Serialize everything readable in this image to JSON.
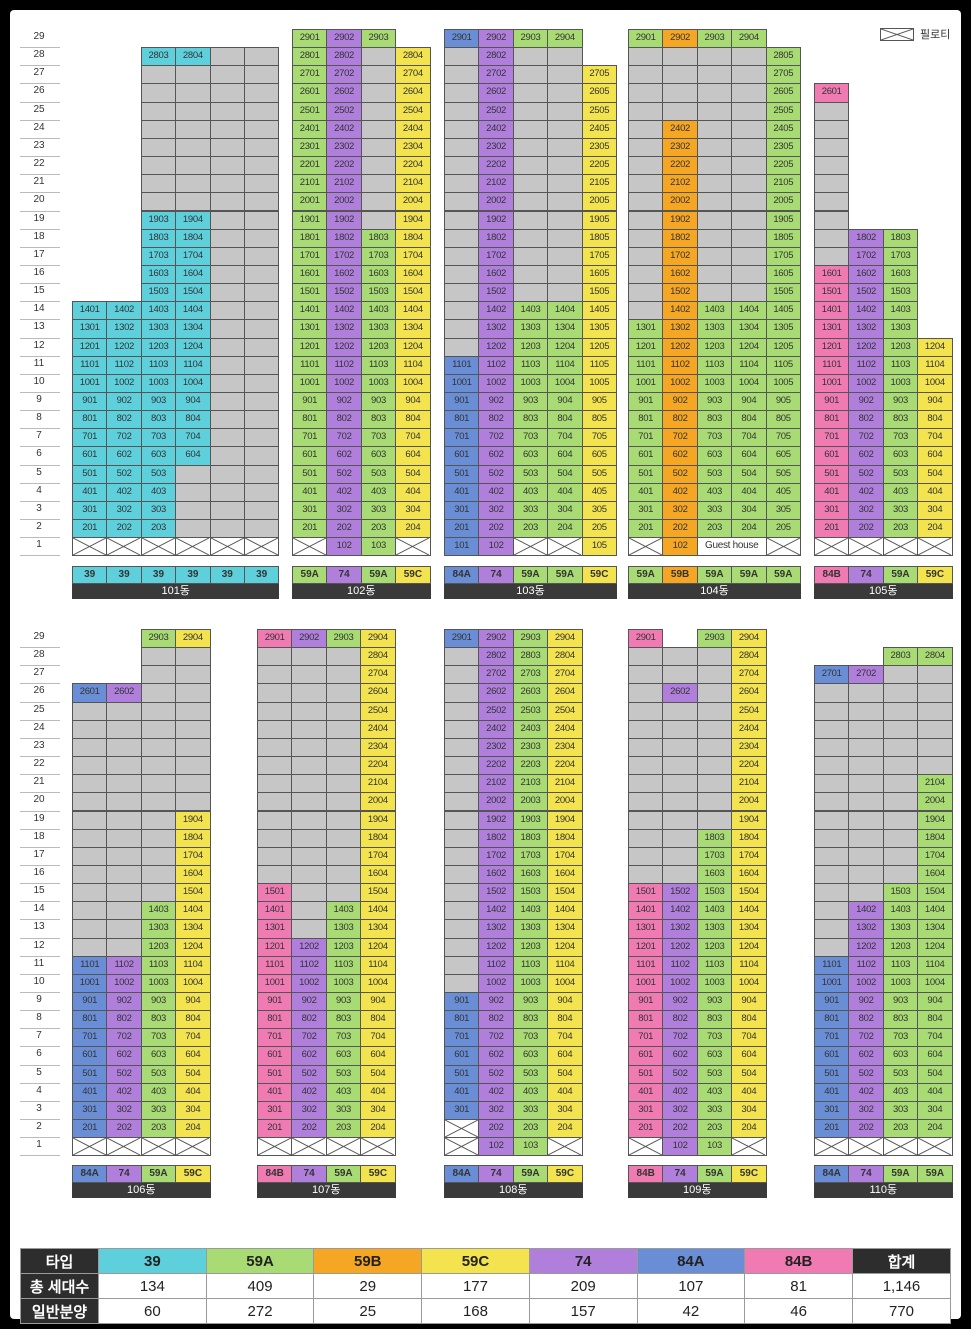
{
  "legend": {
    "piloti_label": "필로티"
  },
  "floors": [
    "29",
    "28",
    "27",
    "26",
    "25",
    "24",
    "23",
    "22",
    "21",
    "20",
    "19",
    "18",
    "17",
    "16",
    "15",
    "14",
    "13",
    "12",
    "11",
    "10",
    "9",
    "8",
    "7",
    "6",
    "5",
    "4",
    "3",
    "2",
    "1"
  ],
  "colors": {
    "39": "#5ed0dc",
    "59A": "#a8db73",
    "59B": "#f5a623",
    "59C": "#f2e34f",
    "74": "#b07fdc",
    "84A": "#6a8ed6",
    "84B": "#f07bb3",
    "gray": "#c6c6c6"
  },
  "buildings": [
    {
      "name": "101동",
      "row": 0,
      "types": [
        "39",
        "39",
        "39",
        "39",
        "39",
        "39"
      ],
      "colspecs": [
        "39:5-14",
        "39:5-14",
        "39:5-14,39:15-19,39:28-28",
        "39:6-14,39:15-19,39:28-28",
        "",
        ""
      ],
      "grays": [
        "1:15-14",
        "1:15-14",
        "1:20-27",
        "1:20-27",
        "1:2-28",
        "1:2-28"
      ],
      "exclude": [
        "",
        "",
        "1:2-4",
        "1:2-5",
        "",
        ""
      ],
      "piloti": [
        true,
        true,
        true,
        true,
        true,
        true
      ],
      "gray_top": [
        14,
        14,
        28,
        28,
        28,
        28
      ]
    },
    {
      "name": "102동",
      "row": 0,
      "types": [
        "59A",
        "74",
        "59A",
        "59C"
      ]
    },
    {
      "name": "103동",
      "row": 0,
      "types": [
        "84A",
        "74",
        "59A",
        "59A",
        "59C"
      ]
    },
    {
      "name": "104동",
      "row": 0,
      "types": [
        "59A",
        "59B",
        "59A",
        "59A",
        "59A"
      ]
    },
    {
      "name": "105동",
      "row": 0,
      "types": [
        "84B",
        "74",
        "59A",
        "59C"
      ]
    },
    {
      "name": "106동",
      "row": 1,
      "types": [
        "84A",
        "74",
        "59A",
        "59C"
      ]
    },
    {
      "name": "107동",
      "row": 1,
      "types": [
        "84B",
        "74",
        "59A",
        "59C"
      ]
    },
    {
      "name": "108동",
      "row": 1,
      "types": [
        "84A",
        "74",
        "59A",
        "59C"
      ]
    },
    {
      "name": "109동",
      "row": 1,
      "types": [
        "84B",
        "74",
        "59A",
        "59C"
      ]
    },
    {
      "name": "110동",
      "row": 1,
      "types": [
        "84A",
        "74",
        "59A",
        "59A"
      ]
    }
  ],
  "guest_house_label": "Guest house",
  "summary": {
    "headers": [
      "타입",
      "39",
      "59A",
      "59B",
      "59C",
      "74",
      "84A",
      "84B",
      "합계"
    ],
    "rows": [
      {
        "label": "총 세대수",
        "values": [
          "134",
          "409",
          "29",
          "177",
          "209",
          "107",
          "81",
          "1,146"
        ]
      },
      {
        "label": "일반분양",
        "values": [
          "60",
          "272",
          "25",
          "168",
          "157",
          "42",
          "46",
          "770"
        ]
      }
    ]
  }
}
